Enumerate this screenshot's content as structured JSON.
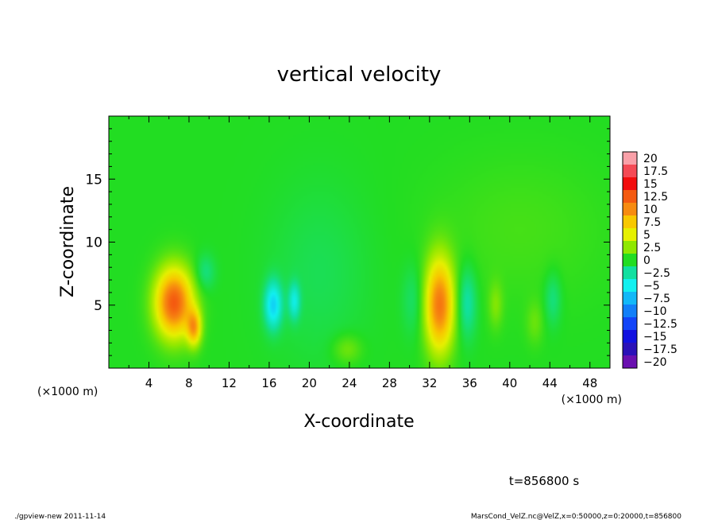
{
  "chart_data": {
    "type": "heatmap",
    "title": "vertical velocity",
    "xlabel": "X-coordinate",
    "ylabel": "Z-coordinate",
    "x_unit_left": "(×1000 m)",
    "x_unit_right": "(×1000 m)",
    "xlim": [
      0,
      50
    ],
    "ylim": [
      0,
      20
    ],
    "x_ticks": [
      4,
      8,
      12,
      16,
      20,
      24,
      28,
      32,
      36,
      40,
      44,
      48
    ],
    "y_ticks": [
      5,
      10,
      15
    ],
    "grid": false,
    "colorbar": {
      "placement": "right",
      "levels": [
        "20",
        "17.5",
        "15",
        "12.5",
        "10",
        "7.5",
        "5",
        "2.5",
        "0",
        "−2.5",
        "−5",
        "−7.5",
        "−10",
        "−12.5",
        "−15",
        "−17.5",
        "−20"
      ],
      "colors": [
        "#f9a0a8",
        "#f44a55",
        "#f20d0d",
        "#f45a10",
        "#f78b10",
        "#f8c800",
        "#e6f000",
        "#8fe800",
        "#22dd22",
        "#11e0a0",
        "#11f0f0",
        "#11b8f8",
        "#117ff8",
        "#1144f8",
        "#1111e0",
        "#2b11b8",
        "#6a10b0"
      ]
    },
    "background_value": 0,
    "features": [
      {
        "x": 6.5,
        "z": 5.2,
        "sx": 1.3,
        "sz": 1.9,
        "value": 12.5
      },
      {
        "x": 8.5,
        "z": 3.2,
        "sx": 0.5,
        "sz": 1.0,
        "value": 8
      },
      {
        "x": 16.4,
        "z": 5.0,
        "sx": 0.6,
        "sz": 1.3,
        "value": -6
      },
      {
        "x": 18.5,
        "z": 5.3,
        "sx": 0.4,
        "sz": 1.0,
        "value": -4
      },
      {
        "x": 33.0,
        "z": 5.0,
        "sx": 1.0,
        "sz": 2.6,
        "value": 11
      },
      {
        "x": 35.7,
        "z": 5.2,
        "sx": 0.7,
        "sz": 2.0,
        "value": -3
      },
      {
        "x": 38.6,
        "z": 5.0,
        "sx": 0.5,
        "sz": 1.3,
        "value": 2
      },
      {
        "x": 42.5,
        "z": 3.6,
        "sx": 0.6,
        "sz": 1.2,
        "value": 1.5
      },
      {
        "x": 44.3,
        "z": 5.5,
        "sx": 0.6,
        "sz": 1.5,
        "value": -2
      },
      {
        "x": 23.8,
        "z": 1.5,
        "sx": 1.0,
        "sz": 0.8,
        "value": 2
      },
      {
        "x": 9.6,
        "z": 7.6,
        "sx": 0.7,
        "sz": 1.0,
        "value": -2
      },
      {
        "x": 30.4,
        "z": 5.4,
        "sx": 0.8,
        "sz": 2.0,
        "value": -1.5
      },
      {
        "x": 21.0,
        "z": 7.5,
        "sx": 3.5,
        "sz": 5.0,
        "value": -1
      },
      {
        "x": 41.0,
        "z": 11.0,
        "sx": 6.0,
        "sz": 4.0,
        "value": 0.8
      }
    ],
    "time_label": "t=856800 s"
  },
  "footer": {
    "left": "./gpview-new  2011-11-14",
    "right": "MarsCond_VelZ.nc@VelZ,x=0:50000,z=0:20000,t=856800"
  }
}
